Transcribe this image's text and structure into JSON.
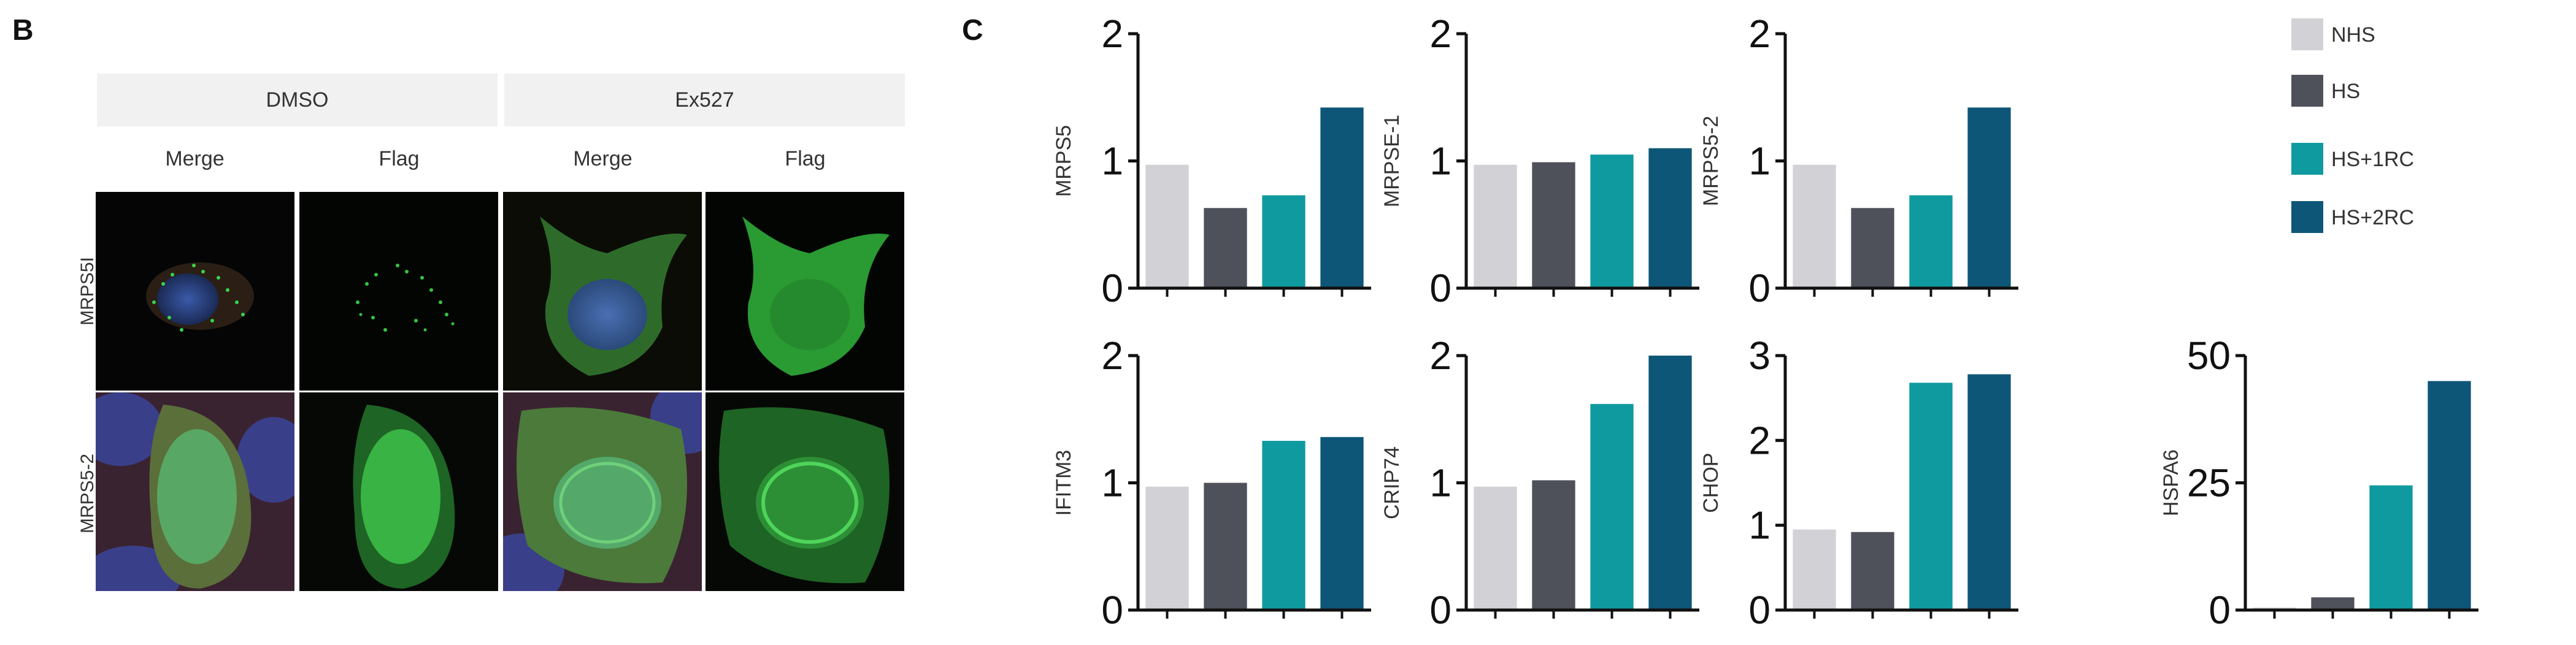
{
  "panel_b": {
    "letter": "B",
    "conditions": [
      "DMSO",
      "Ex527"
    ],
    "columns": [
      "Merge",
      "Flag",
      "Merge",
      "Flag"
    ],
    "rows": [
      "MRPS5I",
      "MRPS5-2"
    ]
  },
  "panel_c": {
    "letter": "C"
  },
  "legend": [
    {
      "name": "NHS",
      "color": "#d2d2d6"
    },
    {
      "name": "HS",
      "color": "#4e5159"
    },
    {
      "name": "HS+1RC",
      "color": "#0f9aa0"
    },
    {
      "name": "HS+2RC",
      "color": "#0e5677"
    }
  ],
  "chart_data": [
    {
      "type": "bar",
      "ylabel": "MRPS5",
      "categories": [
        "NHS",
        "HS",
        "HS+1RC",
        "HS+2RC"
      ],
      "values": [
        0.97,
        0.63,
        0.73,
        1.42
      ],
      "ylim": [
        0,
        2
      ],
      "yticks": [
        "0",
        "1",
        "2"
      ]
    },
    {
      "type": "bar",
      "ylabel": "MRPSE-1",
      "categories": [
        "NHS",
        "HS",
        "HS+1RC",
        "HS+2RC"
      ],
      "values": [
        0.97,
        0.99,
        1.05,
        1.1
      ],
      "ylim": [
        0,
        2
      ],
      "yticks": [
        "0",
        "1",
        "2"
      ]
    },
    {
      "type": "bar",
      "ylabel": "MRPS5-2",
      "categories": [
        "NHS",
        "HS",
        "HS+1RC",
        "HS+2RC"
      ],
      "values": [
        0.97,
        0.63,
        0.73,
        1.42
      ],
      "ylim": [
        0,
        2
      ],
      "yticks": [
        "0",
        "1",
        "2"
      ]
    },
    {
      "type": "bar",
      "ylabel": "IFITM3",
      "categories": [
        "NHS",
        "HS",
        "HS+1RC",
        "HS+2RC"
      ],
      "values": [
        0.97,
        1.0,
        1.33,
        1.36
      ],
      "ylim": [
        0,
        2
      ],
      "yticks": [
        "0",
        "1",
        "2"
      ]
    },
    {
      "type": "bar",
      "ylabel": "CRIP74",
      "categories": [
        "NHS",
        "HS",
        "HS+1RC",
        "HS+2RC"
      ],
      "values": [
        0.97,
        1.02,
        1.62,
        2.0
      ],
      "ylim": [
        0,
        2
      ],
      "yticks": [
        "0",
        "1",
        "2"
      ]
    },
    {
      "type": "bar",
      "ylabel": "CHOP",
      "categories": [
        "NHS",
        "HS",
        "HS+1RC",
        "HS+2RC"
      ],
      "values": [
        0.95,
        0.92,
        2.68,
        2.78
      ],
      "ylim": [
        0,
        3
      ],
      "yticks": [
        "0",
        "1",
        "2",
        "3"
      ]
    },
    {
      "type": "bar",
      "ylabel": "HSPA6",
      "categories": [
        "NHS",
        "HS",
        "HS+1RC",
        "HS+2RC"
      ],
      "values": [
        0.5,
        2.5,
        24.5,
        45.0
      ],
      "ylim": [
        0,
        50
      ],
      "yticks": [
        "0",
        "25",
        "50"
      ]
    }
  ]
}
